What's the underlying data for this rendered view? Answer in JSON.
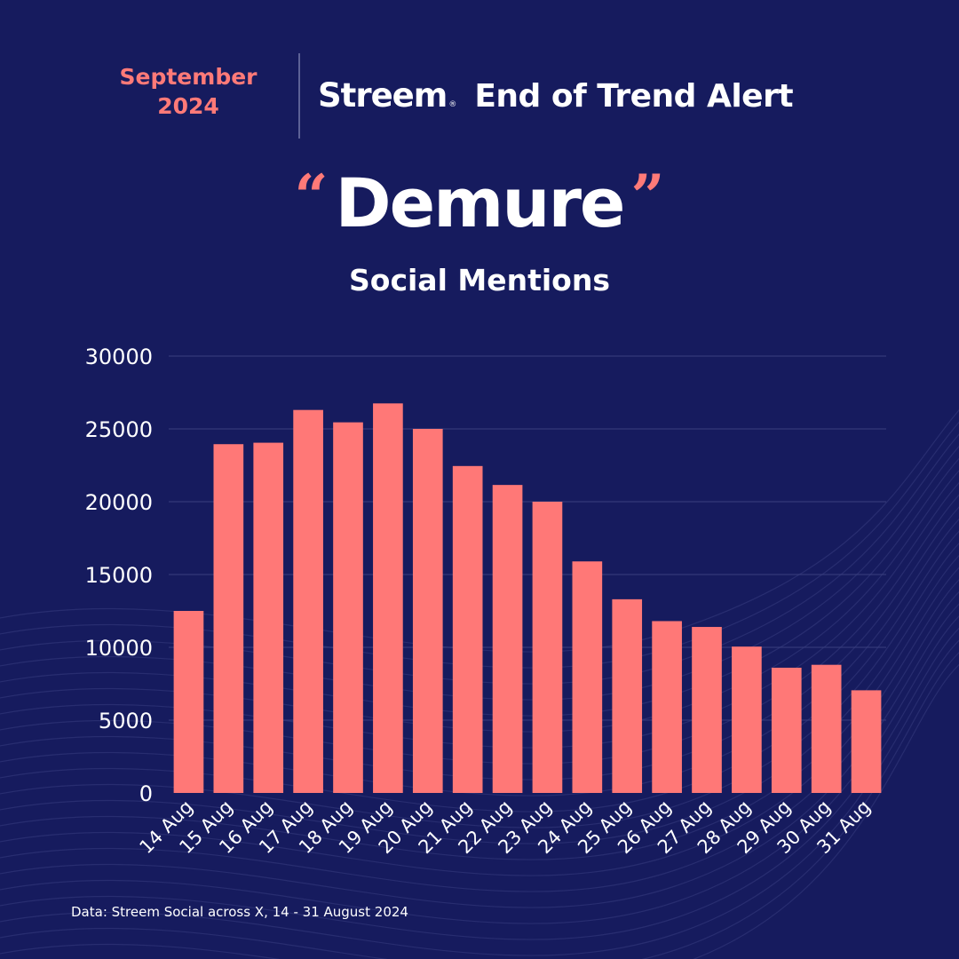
{
  "header": {
    "date_line1": "September",
    "date_line2": "2024",
    "brand": "Streem",
    "brand_mark": "®",
    "alert_title": "End of Trend Alert"
  },
  "headline": {
    "open_quote": "“",
    "term": "Demure",
    "close_quote": "”",
    "subtitle": "Social Mentions"
  },
  "footnote": "Data: Streem Social across X, 14 - 31 August 2024",
  "colors": {
    "background": "#161b5e",
    "accent": "#ff7a78",
    "bar": "#ff7877",
    "text": "#ffffff"
  },
  "chart_data": {
    "type": "bar",
    "categories": [
      "14 Aug",
      "15 Aug",
      "16 Aug",
      "17 Aug",
      "18 Aug",
      "19 Aug",
      "20 Aug",
      "21 Aug",
      "22 Aug",
      "23 Aug",
      "24 Aug",
      "25 Aug",
      "26 Aug",
      "27 Aug",
      "28 Aug",
      "29 Aug",
      "30 Aug",
      "31 Aug"
    ],
    "values": [
      12500,
      23950,
      24050,
      26300,
      25450,
      26750,
      25000,
      22450,
      21150,
      20000,
      15900,
      13300,
      11800,
      11400,
      10050,
      8600,
      8800,
      7050
    ],
    "title": "",
    "xlabel": "",
    "ylabel": "",
    "ylim": [
      0,
      30000
    ],
    "yticks": [
      "0",
      "5000",
      "10000",
      "15000",
      "20000",
      "25000",
      "30000"
    ],
    "grid": true,
    "legend": "none"
  }
}
